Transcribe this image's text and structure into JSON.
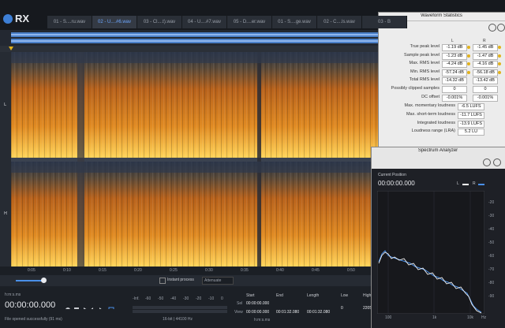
{
  "app": {
    "logo": "RX"
  },
  "tabs": [
    "01 - S....ru.wav",
    "02 - U....#6.wav",
    "03 - Cl....t).wav",
    "04 - U....#7.wav",
    "05 - D....er.wav",
    "01 - S....ge.wav",
    "02 - C....ls.wav",
    "03 - B"
  ],
  "channels": [
    "L",
    "R"
  ],
  "ruler_labels": [
    "0:05",
    "0:10",
    "0:15",
    "0:20",
    "0:25",
    "0:30",
    "0:35",
    "0:40",
    "0:45",
    "0:50"
  ],
  "toolbar": {
    "instant_process": "Instant process",
    "mode": "Attenuate"
  },
  "transport": {
    "format": "h:m:s.ms",
    "time": "00:00:00.000",
    "status": "File opened successfully (91 ms)"
  },
  "meter": {
    "labels": [
      "-Inf.",
      "-60",
      "-50",
      "-40",
      "-30",
      "-20",
      "-10",
      "0"
    ],
    "info": "16-bit | 44100 Hz"
  },
  "selection": {
    "headers": [
      "Start",
      "End",
      "Length",
      "Low",
      "High"
    ],
    "sel": {
      "label": "Sel",
      "start": "00:00:00.000"
    },
    "view": {
      "label": "View",
      "start": "00:00:00.000",
      "end": "00:01:32.080",
      "length": "00:01:32.080"
    },
    "low": "0",
    "high": "22050",
    "format": "h:m:s.ms"
  },
  "stats": {
    "title": "Waveform Statistics",
    "columns": [
      "L",
      "R"
    ],
    "rows": [
      {
        "label": "True peak level",
        "values": [
          "-1.19 dB",
          "-1.45 dB"
        ]
      },
      {
        "label": "Sample peak level",
        "values": [
          "-1.23 dB",
          "-1.47 dB"
        ]
      },
      {
        "label": "Max. RMS level",
        "values": [
          "-4.24 dB",
          "-4.16 dB"
        ]
      },
      {
        "label": "Min. RMS level",
        "values": [
          "-57.24 dB",
          "-56.18 dB"
        ]
      },
      {
        "label": "Total RMS level",
        "values": [
          "-14.32 dB",
          "-13.42 dB"
        ]
      },
      {
        "label": "Possibly clipped samples",
        "values": [
          "0",
          "0"
        ]
      },
      {
        "label": "DC offset",
        "values": [
          "-0.001%",
          "-0.001%"
        ]
      }
    ],
    "loudness": [
      {
        "label": "Max. momentary loudness",
        "value": "-6.5 LUFS"
      },
      {
        "label": "Max. short-term loudness",
        "value": "-11.7 LUFS"
      },
      {
        "label": "Integrated loudness",
        "value": "-13.9 LUFS"
      },
      {
        "label": "Loudness range (LRA)",
        "value": "5.2 LU"
      }
    ]
  },
  "spectrum": {
    "title": "Spectrum Analyzer",
    "position_label": "Current Position",
    "position": "00:00:00.000",
    "legend": [
      "L",
      "R"
    ],
    "y_labels": [
      "-20",
      "-30",
      "-40",
      "-50",
      "-60",
      "-70",
      "-80",
      "-90"
    ],
    "x_labels": [
      "100",
      "1k",
      "10k",
      "Hz"
    ]
  }
}
